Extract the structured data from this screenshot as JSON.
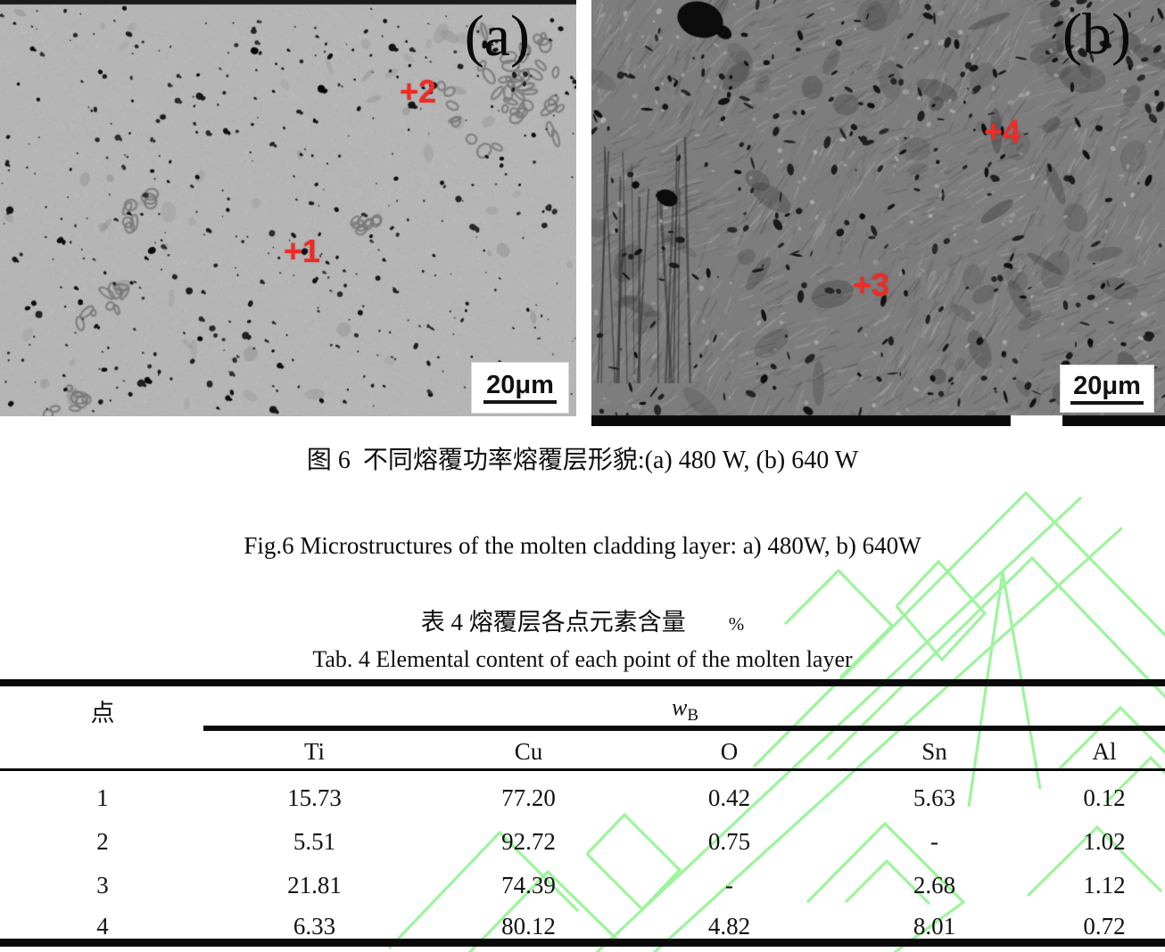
{
  "figure": {
    "panel_a": {
      "label": "(a)",
      "marker_upper": "+2",
      "marker_lower": "+1",
      "scalebar_label": "20μm"
    },
    "panel_b": {
      "label": "(b)",
      "marker_upper": "+4",
      "marker_lower": "+3",
      "scalebar_label": "20μm"
    },
    "caption_cn": "图 6  不同熔覆功率熔覆层形貌:(a) 480 W, (b) 640 W",
    "caption_en": "Fig.6 Microstructures of the molten cladding layer: a) 480W, b) 640W"
  },
  "table": {
    "title_cn": "表 4  熔覆层各点元素含量",
    "title_unit": "%",
    "title_en": "Tab. 4 Elemental content of each point of the molten layer",
    "point_header": "点",
    "group_symbol": "w",
    "group_subscript": "B",
    "columns": [
      "Ti",
      "Cu",
      "O",
      "Sn",
      "Al"
    ],
    "rows": [
      {
        "point": "1",
        "values": [
          "15.73",
          "77.20",
          "0.42",
          "5.63",
          "0.12"
        ]
      },
      {
        "point": "2",
        "values": [
          "5.51",
          "92.72",
          "0.75",
          "-",
          "1.02"
        ]
      },
      {
        "point": "3",
        "values": [
          "21.81",
          "74.39",
          "-",
          "2.68",
          "1.12"
        ]
      },
      {
        "point": "4",
        "values": [
          "6.33",
          "80.12",
          "4.82",
          "8.01",
          "0.72"
        ]
      }
    ]
  },
  "colors": {
    "marker_red": "#ee2b24",
    "watermark_green": "#9df49d",
    "sem_a_base": "#b5b5b5",
    "sem_b_base": "#7d7d7d"
  }
}
